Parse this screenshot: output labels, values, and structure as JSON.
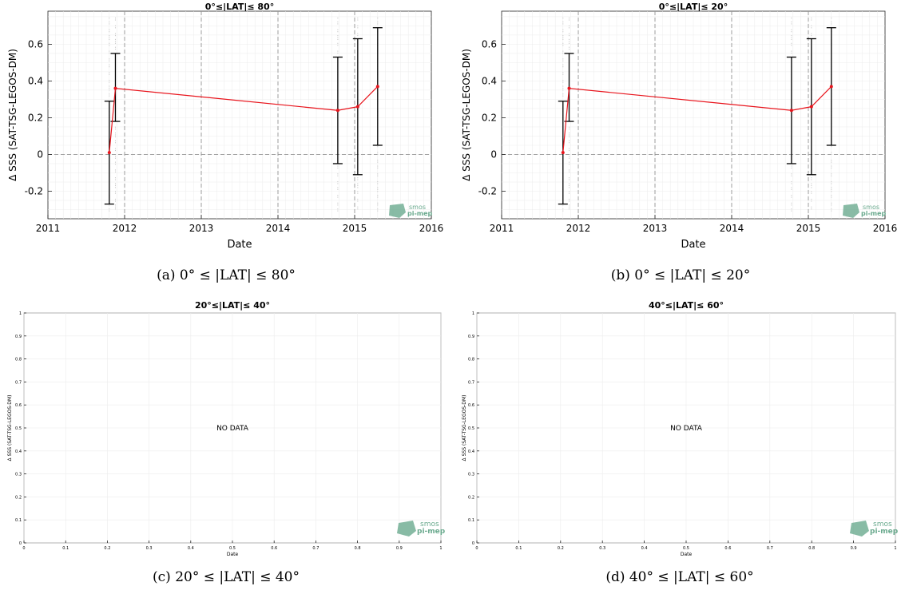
{
  "panels": [
    {
      "id": "a",
      "title": "0°≤|LAT|≤ 80°",
      "caption": "(a) 0° ≤ |LAT| ≤ 80°",
      "logo_text": [
        "smos",
        "pi-mep"
      ]
    },
    {
      "id": "b",
      "title": "0°≤|LAT|≤ 20°",
      "caption": "(b) 0° ≤ |LAT| ≤ 20°",
      "logo_text": [
        "smos",
        "pi-mep"
      ]
    },
    {
      "id": "c",
      "title": "20°≤|LAT|≤ 40°",
      "caption": "(c) 20° ≤ |LAT| ≤ 40°",
      "no_data": "NO DATA",
      "logo_text": [
        "smos",
        "pi-mep"
      ]
    },
    {
      "id": "d",
      "title": "40°≤|LAT|≤ 60°",
      "caption": "(d) 40° ≤ |LAT| ≤ 60°",
      "no_data": "NO DATA",
      "logo_text": [
        "smos",
        "pi-mep"
      ]
    }
  ],
  "chart_data": [
    {
      "type": "line",
      "title": "0°≤|LAT|≤ 80°",
      "xlabel": "Date",
      "ylabel": "Δ SSS (SAT-TSG-LEGOS-DM)",
      "xlim": [
        2011,
        2016
      ],
      "ylim": [
        -0.35,
        0.78
      ],
      "xticks": [
        2011,
        2012,
        2013,
        2014,
        2015,
        2016
      ],
      "yticks": [
        -0.2,
        0,
        0.2,
        0.4,
        0.6
      ],
      "yticklabels": [
        "-0.2",
        "0",
        "0.2",
        "0.4",
        "0.6"
      ],
      "grid": true,
      "zero_line": 0,
      "series": [
        {
          "color": "#e8141c",
          "x": [
            2011.8,
            2011.88,
            2014.78,
            2015.04,
            2015.3
          ],
          "y": [
            0.01,
            0.36,
            0.24,
            0.26,
            0.37
          ],
          "err_low": [
            -0.27,
            0.18,
            -0.05,
            -0.11,
            0.05
          ],
          "err_high": [
            0.29,
            0.55,
            0.53,
            0.63,
            0.69
          ]
        }
      ]
    },
    {
      "type": "line",
      "title": "0°≤|LAT|≤ 20°",
      "xlabel": "Date",
      "ylabel": "Δ SSS (SAT-TSG-LEGOS-DM)",
      "xlim": [
        2011,
        2016
      ],
      "ylim": [
        -0.35,
        0.78
      ],
      "xticks": [
        2011,
        2012,
        2013,
        2014,
        2015,
        2016
      ],
      "yticks": [
        -0.2,
        0,
        0.2,
        0.4,
        0.6
      ],
      "yticklabels": [
        "-0.2",
        "0",
        "0.2",
        "0.4",
        "0.6"
      ],
      "grid": true,
      "zero_line": 0,
      "series": [
        {
          "color": "#e8141c",
          "x": [
            2011.8,
            2011.88,
            2014.78,
            2015.04,
            2015.3
          ],
          "y": [
            0.01,
            0.36,
            0.24,
            0.26,
            0.37
          ],
          "err_low": [
            -0.27,
            0.18,
            -0.05,
            -0.11,
            0.05
          ],
          "err_high": [
            0.29,
            0.55,
            0.53,
            0.63,
            0.69
          ]
        }
      ]
    },
    {
      "type": "line",
      "title": "20°≤|LAT|≤ 40°",
      "xlabel": "Date",
      "ylabel": "Δ SSS (SAT-TSG-LEGOS-DM)",
      "xlim": [
        0,
        1
      ],
      "ylim": [
        0,
        1
      ],
      "xticks": [
        0,
        0.1,
        0.2,
        0.3,
        0.4,
        0.5,
        0.6,
        0.7,
        0.8,
        0.9,
        1
      ],
      "yticks": [
        0,
        0.1,
        0.2,
        0.3,
        0.4,
        0.5,
        0.6,
        0.7,
        0.8,
        0.9,
        1
      ],
      "xticklabels": [
        "0",
        "0.1",
        "0.2",
        "0.3",
        "0.4",
        "0.5",
        "0.6",
        "0.7",
        "0.8",
        "0.9",
        "1"
      ],
      "yticklabels": [
        "0",
        "0.1",
        "0.2",
        "0.3",
        "0.4",
        "0.5",
        "0.6",
        "0.7",
        "0.8",
        "0.9",
        "1"
      ],
      "grid": true,
      "series": []
    },
    {
      "type": "line",
      "title": "40°≤|LAT|≤ 60°",
      "xlabel": "Date",
      "ylabel": "Δ SSS (SAT-TSG-LEGOS-DM)",
      "xlim": [
        0,
        1
      ],
      "ylim": [
        0,
        1
      ],
      "xticks": [
        0,
        0.1,
        0.2,
        0.3,
        0.4,
        0.5,
        0.6,
        0.7,
        0.8,
        0.9,
        1
      ],
      "yticks": [
        0,
        0.1,
        0.2,
        0.3,
        0.4,
        0.5,
        0.6,
        0.7,
        0.8,
        0.9,
        1
      ],
      "xticklabels": [
        "0",
        "0.1",
        "0.2",
        "0.3",
        "0.4",
        "0.5",
        "0.6",
        "0.7",
        "0.8",
        "0.9",
        "1"
      ],
      "yticklabels": [
        "0",
        "0.1",
        "0.2",
        "0.3",
        "0.4",
        "0.5",
        "0.6",
        "0.7",
        "0.8",
        "0.9",
        "1"
      ],
      "grid": true,
      "series": []
    }
  ],
  "colors": {
    "series_line": "#e8141c",
    "error_bar": "#000000",
    "grid_minor": "#ececec",
    "grid_major": "#888888",
    "logo": "#6aaa8e"
  }
}
